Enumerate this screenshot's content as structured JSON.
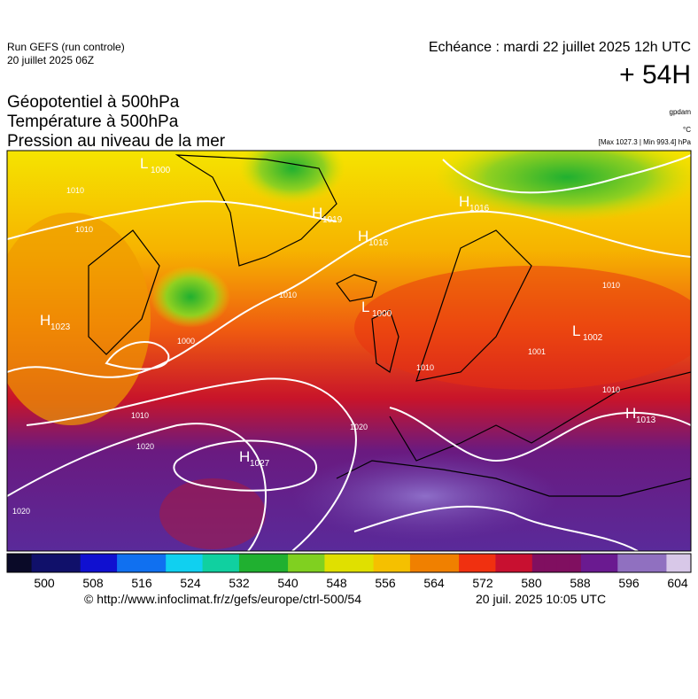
{
  "header": {
    "run": "Run GEFS (run controle)",
    "run_date": "20 juillet 2025 06Z",
    "valid": "Echéance : mardi 22 juillet 2025 12h UTC",
    "lead": "+ 54H"
  },
  "titles": [
    "Géopotentiel à 500hPa",
    "Température à 500hPa",
    "Pression au niveau de la mer"
  ],
  "units": [
    "gpdam",
    "°C",
    "[Max 1027.3 | Min 993.4] hPa"
  ],
  "centers": [
    {
      "letter": "H",
      "value": "1023"
    },
    {
      "letter": "L",
      "value": "1000"
    },
    {
      "letter": "H",
      "value": "1019"
    },
    {
      "letter": "H",
      "value": "1016"
    },
    {
      "letter": "H",
      "value": "1016"
    },
    {
      "letter": "L",
      "value": "1000"
    },
    {
      "letter": "L",
      "value": "1002"
    },
    {
      "letter": "H",
      "value": "1027"
    },
    {
      "letter": "H",
      "value": "1013"
    }
  ],
  "isobar_labels": [
    "1010",
    "1010",
    "1000",
    "1010",
    "1010",
    "1020",
    "1020",
    "1020",
    "1010",
    "1010",
    "1010",
    "1001"
  ],
  "colorbar": {
    "ticks": [
      500,
      508,
      516,
      524,
      532,
      540,
      548,
      556,
      564,
      572,
      580,
      588,
      596,
      604
    ]
  },
  "footer": {
    "source": "© http://www.infoclimat.fr/z/gefs/europe/ctrl-500/54",
    "generated": "20 juil. 2025 10:05 UTC"
  }
}
